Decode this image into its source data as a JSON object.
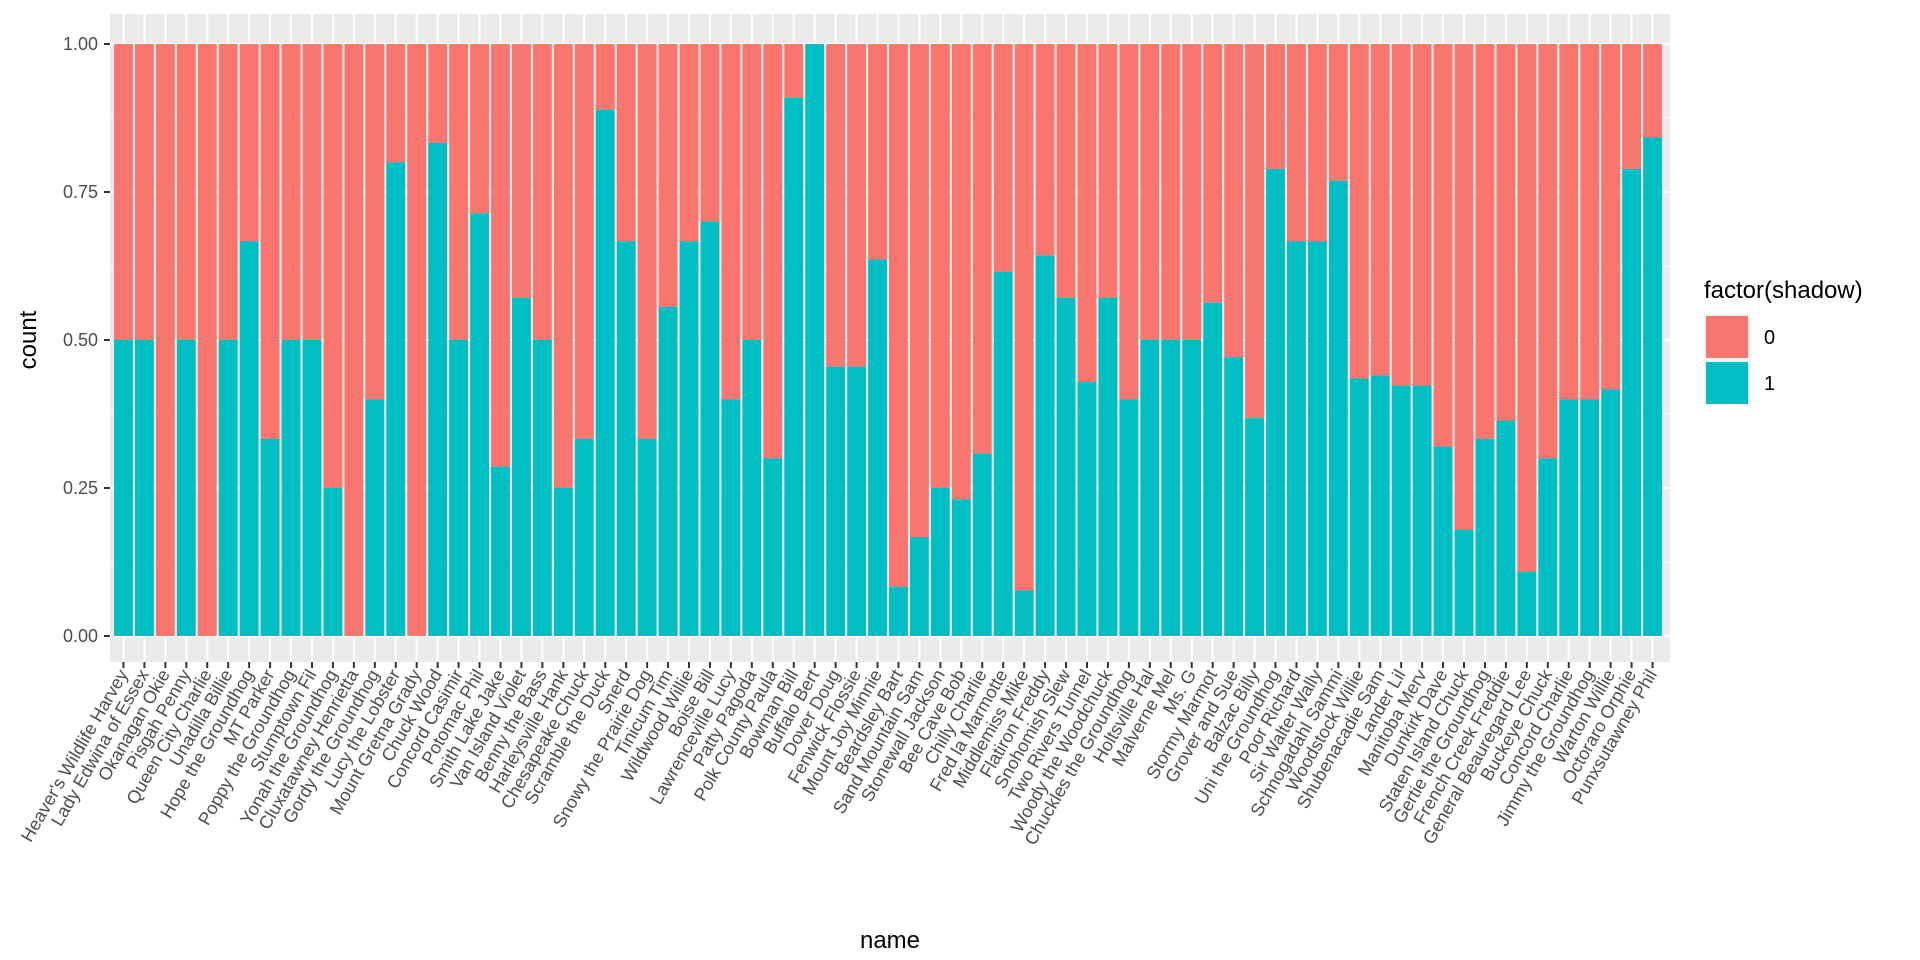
{
  "chart_data": {
    "type": "bar",
    "stacked": true,
    "xlabel": "name",
    "ylabel": "count",
    "ylim": [
      0,
      1
    ],
    "y_ticks": [
      "0.00",
      "0.25",
      "0.50",
      "0.75",
      "1.00"
    ],
    "y_tick_values": [
      0,
      0.25,
      0.5,
      0.75,
      1
    ],
    "grid": true,
    "legend_position": "right",
    "legend_title": "factor(shadow)",
    "colors": {
      "0": "#F8766D",
      "1": "#00BFC4"
    },
    "legend": [
      {
        "label": "0",
        "color": "#F8766D"
      },
      {
        "label": "1",
        "color": "#00BFC4"
      }
    ],
    "categories": [
      "Heaver's Wildlife Harvey",
      "Lady Edwina of Essex",
      "Okanagan Okie",
      "Pisgah Penny",
      "Queen City Charlie",
      "Unadilla Billie",
      "Hope the Groundhog",
      "MT Parker",
      "Poppy the Groundhog",
      "Stumptown Fil",
      "Yonah the Groundhog",
      "Cluxatawney Henrietta",
      "Gordy the Groundhog",
      "Lucy the Lobster",
      "Mount Gretna Grady",
      "Chuck Wood",
      "Concord Casimir",
      "Potomac Phil",
      "Smith Lake Jake",
      "Van Island Violet",
      "Benny the Bass",
      "Harleysville Hank",
      "Chesapeake Chuck",
      "Scramble the Duck",
      "Snerd",
      "Snowy the Prairie Dog",
      "Tinicum Tim",
      "Wildwood Willie",
      "Boise Bill",
      "Lawrenceville Lucy",
      "Patty Pagoda",
      "Polk County Paula",
      "Bowman Bill",
      "Buffalo Bert",
      "Dover Doug",
      "Fenwick Flossie",
      "Mount Joy Minnie",
      "Beardsley Bart",
      "Sand Mountain Sam",
      "Stonewall Jackson",
      "Bee Cave Bob",
      "Chilly Charlie",
      "Fred la Marmotte",
      "Middlemiss Mike",
      "Flatiron Freddy",
      "Snohomish Slew",
      "Two Rivers Tunnel",
      "Woody the Woodchuck",
      "Chuckles the Groundhog",
      "Holtsville Hal",
      "Malverne Mel",
      "Ms. G",
      "Stormy Marmot",
      "Grover and Sue",
      "Balzac Billy",
      "Uni the Groundhog",
      "Poor Richard",
      "Sir Walter Wally",
      "Schnogadahl Sammi",
      "Woodstock Willie",
      "Shubenacadie Sam",
      "Lander Lil",
      "Manitoba Merv",
      "Dunkirk Dave",
      "Staten Island Chuck",
      "Gertie the Groundhog",
      "French Creek Freddie",
      "General Beauregard Lee",
      "Buckeye Chuck",
      "Concord Charlie",
      "Jimmy the Groundhog",
      "Warton Willie",
      "Octoraro Orphie",
      "Punxsutawney Phil"
    ],
    "series": [
      {
        "name": "1",
        "values": [
          0.5,
          0.5,
          0,
          0.5,
          0,
          0.5,
          0.667,
          0.333,
          0.5,
          0.5,
          0.25,
          0,
          0.4,
          0.8,
          0,
          0.833,
          0.5,
          0.714,
          0.286,
          0.571,
          0.5,
          0.25,
          0.333,
          0.889,
          0.667,
          0.333,
          0.556,
          0.667,
          0.7,
          0.4,
          0.5,
          0.3,
          0.909,
          1,
          0.455,
          0.455,
          0.636,
          0.083,
          0.167,
          0.25,
          0.231,
          0.308,
          0.615,
          0.077,
          0.643,
          0.571,
          0.429,
          0.571,
          0.4,
          0.5,
          0.5,
          0.5,
          0.563,
          0.471,
          0.368,
          0.789,
          0.667,
          0.667,
          0.769,
          0.435,
          0.44,
          0.423,
          0.423,
          0.32,
          0.179,
          0.333,
          0.364,
          0.108,
          0.3,
          0.4,
          0.4,
          0.417,
          0.789,
          0.842
        ]
      }
    ]
  }
}
